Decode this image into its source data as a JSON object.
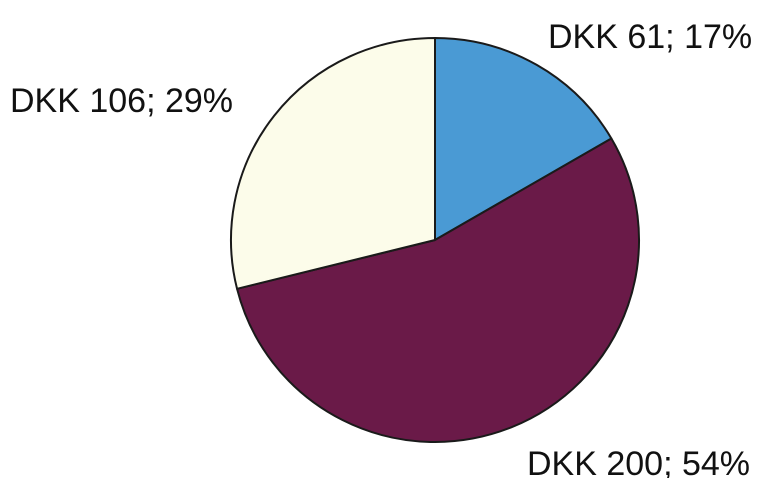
{
  "chart_data": {
    "type": "pie",
    "start_angle": "12 o'clock",
    "direction": "clockwise",
    "slices": [
      {
        "value": 61,
        "percent": 17,
        "label": "DKK 61; 17%",
        "color": "#4a9ad4"
      },
      {
        "value": 200,
        "percent": 54,
        "label": "DKK 200; 54%",
        "color": "#6a1a48"
      },
      {
        "value": 106,
        "percent": 29,
        "label": "DKK 106; 29%",
        "color": "#fcfcea"
      }
    ]
  }
}
